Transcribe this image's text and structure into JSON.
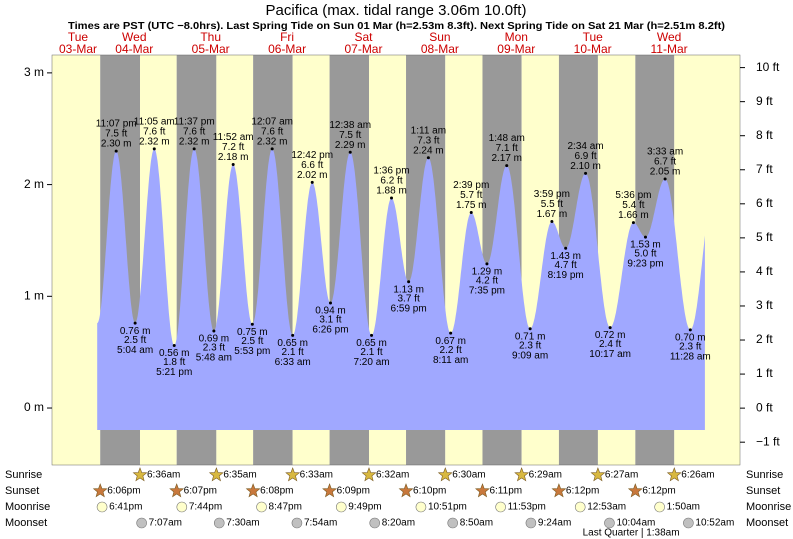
{
  "chart_data": {
    "type": "tide",
    "title": "Pacifica (max. tidal range 3.06m 10.0ft)",
    "subtitle": "Times are PST (UTC −8.0hrs). Last Spring Tide on Sun 01 Mar (h=2.53m 8.3ft). Next Spring Tide on Sat 21 Mar (h=2.51m 8.2ft)",
    "ylim": [
      -0.51,
      3.16
    ],
    "yticks": [
      {
        "value": 0,
        "label": "0 m"
      },
      {
        "value": 1,
        "label": "1 m"
      },
      {
        "value": 2,
        "label": "2 m"
      },
      {
        "value": 3,
        "label": "3 m"
      }
    ],
    "y2lim": [
      -1.67,
      10.37
    ],
    "y2ticks": [
      {
        "value": -1,
        "label": "−1 ft"
      },
      {
        "value": 0,
        "label": "0 ft"
      },
      {
        "value": 1,
        "label": "1 ft"
      },
      {
        "value": 2,
        "label": "2 ft"
      },
      {
        "value": 3,
        "label": "3 ft"
      },
      {
        "value": 4,
        "label": "4 ft"
      },
      {
        "value": 5,
        "label": "5 ft"
      },
      {
        "value": 6,
        "label": "6 ft"
      },
      {
        "value": 7,
        "label": "7 ft"
      },
      {
        "value": 8,
        "label": "8 ft"
      },
      {
        "value": 9,
        "label": "9 ft"
      },
      {
        "value": 10,
        "label": "10 ft"
      }
    ],
    "row_labels": [
      "Sunrise",
      "Sunset",
      "Moonrise",
      "Moonset"
    ],
    "days": [
      {
        "weekday": "Tue",
        "date": "03-Mar",
        "sunrise": null,
        "sunset": "6:06pm",
        "moonrise": "6:41pm",
        "moonset": null,
        "tides": {
          "times": [
            "11:07 pm"
          ],
          "values": [
            2.3
          ],
          "value_labels": [
            "2.30 m"
          ],
          "feet_labels": [
            "7.5 ft"
          ]
        }
      },
      {
        "weekday": "Wed",
        "date": "04-Mar",
        "sunrise": "6:36am",
        "sunset": "6:07pm",
        "moonrise": "7:44pm",
        "moonset": "7:07am",
        "tides": {
          "times": [
            "5:04 am",
            "11:05 am",
            "5:21 pm",
            "11:37 pm"
          ],
          "values": [
            0.76,
            2.32,
            0.56,
            2.32
          ],
          "value_labels": [
            "0.76 m",
            "2.32 m",
            "0.56 m",
            "2.32 m"
          ],
          "feet_labels": [
            "2.5 ft",
            "7.6 ft",
            "1.8 ft",
            "7.6 ft"
          ]
        }
      },
      {
        "weekday": "Thu",
        "date": "05-Mar",
        "sunrise": "6:35am",
        "sunset": "6:08pm",
        "moonrise": "8:47pm",
        "moonset": "7:30am",
        "tides": {
          "times": [
            "5:48 am",
            "11:52 am",
            "5:53 pm"
          ],
          "values": [
            0.69,
            2.18,
            0.75
          ],
          "value_labels": [
            "0.69 m",
            "2.18 m",
            "0.75 m"
          ],
          "feet_labels": [
            "2.3 ft",
            "7.2 ft",
            "2.5 ft"
          ]
        }
      },
      {
        "weekday": "Fri",
        "date": "06-Mar",
        "sunrise": "6:33am",
        "sunset": "6:09pm",
        "moonrise": "9:49pm",
        "moonset": "7:54am",
        "tides": {
          "times": [
            "12:07 am",
            "6:33 am",
            "12:42 pm",
            "6:26 pm"
          ],
          "values": [
            2.32,
            0.65,
            2.02,
            0.94
          ],
          "value_labels": [
            "2.32 m",
            "0.65 m",
            "2.02 m",
            "0.94 m"
          ],
          "feet_labels": [
            "7.6 ft",
            "2.1 ft",
            "6.6 ft",
            "3.1 ft"
          ]
        }
      },
      {
        "weekday": "Sat",
        "date": "07-Mar",
        "sunrise": "6:32am",
        "sunset": "6:10pm",
        "moonrise": "10:51pm",
        "moonset": "8:20am",
        "tides": {
          "times": [
            "12:38 am",
            "7:20 am",
            "1:36 pm",
            "6:59 pm"
          ],
          "values": [
            2.29,
            0.65,
            1.88,
            1.13
          ],
          "value_labels": [
            "2.29 m",
            "0.65 m",
            "1.88 m",
            "1.13 m"
          ],
          "feet_labels": [
            "7.5 ft",
            "2.1 ft",
            "6.2 ft",
            "3.7 ft"
          ]
        }
      },
      {
        "weekday": "Sun",
        "date": "08-Mar",
        "sunrise": "6:30am",
        "sunset": "6:11pm",
        "moonrise": "11:53pm",
        "moonset": "8:50am",
        "tides": {
          "times": [
            "1:11 am",
            "8:11 am",
            "2:39 pm",
            "7:35 pm"
          ],
          "values": [
            2.24,
            0.67,
            1.75,
            1.29
          ],
          "value_labels": [
            "2.24 m",
            "0.67 m",
            "1.75 m",
            "1.29 m"
          ],
          "feet_labels": [
            "7.3 ft",
            "2.2 ft",
            "5.7 ft",
            "4.2 ft"
          ]
        }
      },
      {
        "weekday": "Mon",
        "date": "09-Mar",
        "sunrise": "6:29am",
        "sunset": "6:12pm",
        "moonrise": null,
        "moonset": "9:24am",
        "tides": {
          "times": [
            "1:48 am",
            "9:09 am",
            "3:59 pm",
            "8:19 pm"
          ],
          "values": [
            2.17,
            0.71,
            1.67,
            1.43
          ],
          "value_labels": [
            "2.17 m",
            "0.71 m",
            "1.67 m",
            "1.43 m"
          ],
          "feet_labels": [
            "7.1 ft",
            "2.3 ft",
            "5.5 ft",
            "4.7 ft"
          ]
        }
      },
      {
        "weekday": "Tue",
        "date": "10-Mar",
        "sunrise": "6:27am",
        "sunset": "6:12pm",
        "moonrise": "12:53am",
        "moonset": "10:04am",
        "moon_phase": "Last Quarter",
        "moon_phase_time": "1:38am",
        "tides": {
          "times": [
            "2:34 am",
            "10:17 am",
            "5:36 pm",
            "9:23 pm"
          ],
          "values": [
            2.1,
            0.72,
            1.66,
            1.53
          ],
          "value_labels": [
            "2.10 m",
            "0.72 m",
            "1.66 m",
            "1.53 m"
          ],
          "feet_labels": [
            "6.9 ft",
            "2.4 ft",
            "5.4 ft",
            "5.0 ft"
          ]
        }
      },
      {
        "weekday": "Wed",
        "date": "11-Mar",
        "sunrise": "6:26am",
        "sunset": null,
        "moonrise": "1:50am",
        "moonset": "10:52am",
        "tides": {
          "times": [
            "3:33 am",
            "11:28 am"
          ],
          "values": [
            2.05,
            0.7
          ],
          "value_labels": [
            "2.05 m",
            "0.70 m"
          ],
          "feet_labels": [
            "6.7 ft",
            "2.3 ft"
          ]
        }
      }
    ]
  }
}
